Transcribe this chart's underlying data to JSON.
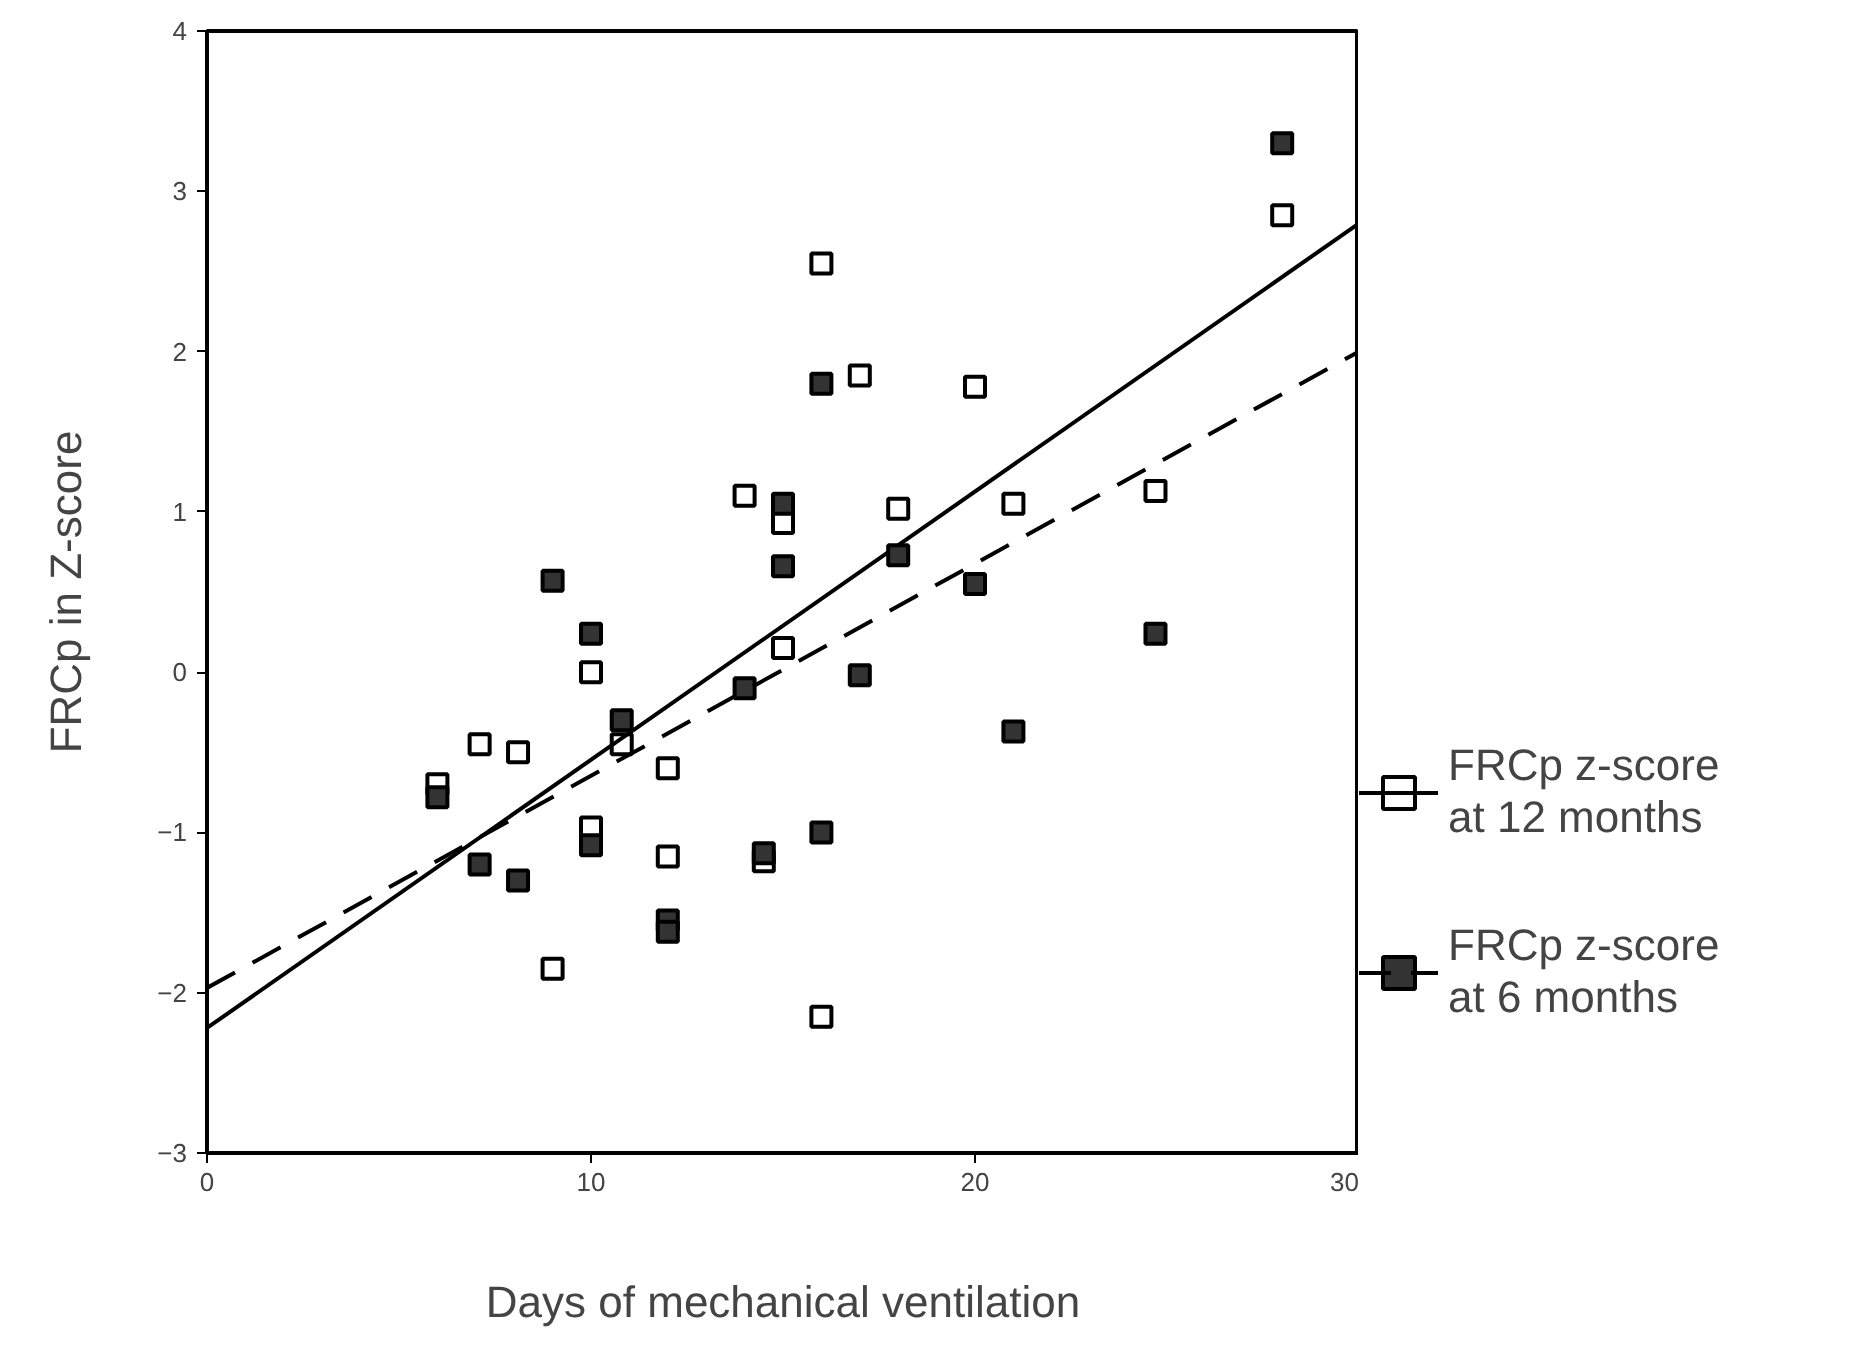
{
  "chart_data": {
    "type": "scatter",
    "xlabel": "Days of mechanical ventilation",
    "ylabel": "FRCp in Z-score",
    "xlim": [
      0,
      30
    ],
    "xticks": [
      0,
      10,
      20,
      30
    ],
    "ylim": [
      -3,
      4
    ],
    "yticks": [
      -3,
      -2,
      -1,
      0,
      1,
      2,
      3,
      4
    ],
    "grid": false,
    "legend": "right",
    "series": [
      {
        "name": "FRCp z-score at 12 months",
        "marker": "square",
        "color": "#ffffff",
        "x": [
          6,
          7.1,
          8.1,
          9,
          10,
          10,
          10.8,
          12,
          12,
          14,
          14.5,
          15,
          15,
          16,
          16,
          17,
          18,
          20,
          21,
          24.7,
          28
        ],
        "values": [
          -0.7,
          -0.45,
          -0.5,
          -1.85,
          0,
          -0.97,
          -0.45,
          -0.6,
          -1.15,
          1.1,
          -1.18,
          0.93,
          0.15,
          2.55,
          -2.15,
          1.85,
          1.02,
          1.78,
          1.05,
          1.13,
          2.85
        ]
      },
      {
        "type": "line",
        "color": "#000000",
        "line_style": "solid",
        "x": [
          0,
          30
        ],
        "values": [
          -2.22,
          2.8
        ]
      },
      {
        "name": "FRCp z-score at 6 months",
        "marker": "square",
        "color": "#333333",
        "x": [
          6,
          7.1,
          8.1,
          9,
          10,
          10,
          10.8,
          12,
          12,
          14,
          14.5,
          15,
          15,
          16,
          16,
          17,
          18,
          20,
          21,
          24.7,
          28
        ],
        "values": [
          -0.78,
          -1.2,
          -1.3,
          0.57,
          0.24,
          -1.08,
          -0.3,
          -1.55,
          -1.62,
          -0.1,
          -1.13,
          1.05,
          0.66,
          1.8,
          -1.0,
          -0.02,
          0.73,
          0.55,
          -0.37,
          0.24,
          3.3
        ]
      },
      {
        "type": "line",
        "color": "#000000",
        "line_style": "dashed",
        "x": [
          0,
          30
        ],
        "values": [
          -1.97,
          2.0
        ]
      }
    ]
  }
}
